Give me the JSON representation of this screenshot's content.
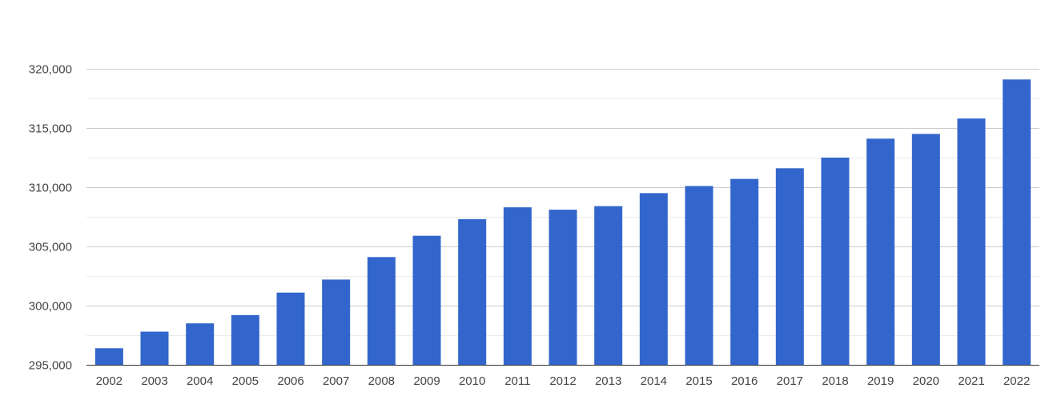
{
  "chart_data": {
    "type": "bar",
    "title": "",
    "xlabel": "",
    "ylabel": "",
    "categories": [
      "2002",
      "2003",
      "2004",
      "2005",
      "2006",
      "2007",
      "2008",
      "2009",
      "2010",
      "2011",
      "2012",
      "2013",
      "2014",
      "2015",
      "2016",
      "2017",
      "2018",
      "2019",
      "2020",
      "2021",
      "2022"
    ],
    "values": [
      296400,
      297800,
      298500,
      299200,
      301100,
      302200,
      304100,
      305900,
      307300,
      308300,
      308100,
      308400,
      309500,
      310100,
      310700,
      311600,
      312500,
      314100,
      314500,
      315800,
      319100
    ],
    "ylim": [
      295000,
      320000
    ],
    "yticks": [
      295000,
      300000,
      305000,
      310000,
      315000,
      320000
    ],
    "ytick_labels": [
      "295,000",
      "300,000",
      "305,000",
      "310,000",
      "315,000",
      "320,000"
    ],
    "minor_gridlines": true,
    "legend": "none",
    "bar_color": "#3366cc"
  }
}
